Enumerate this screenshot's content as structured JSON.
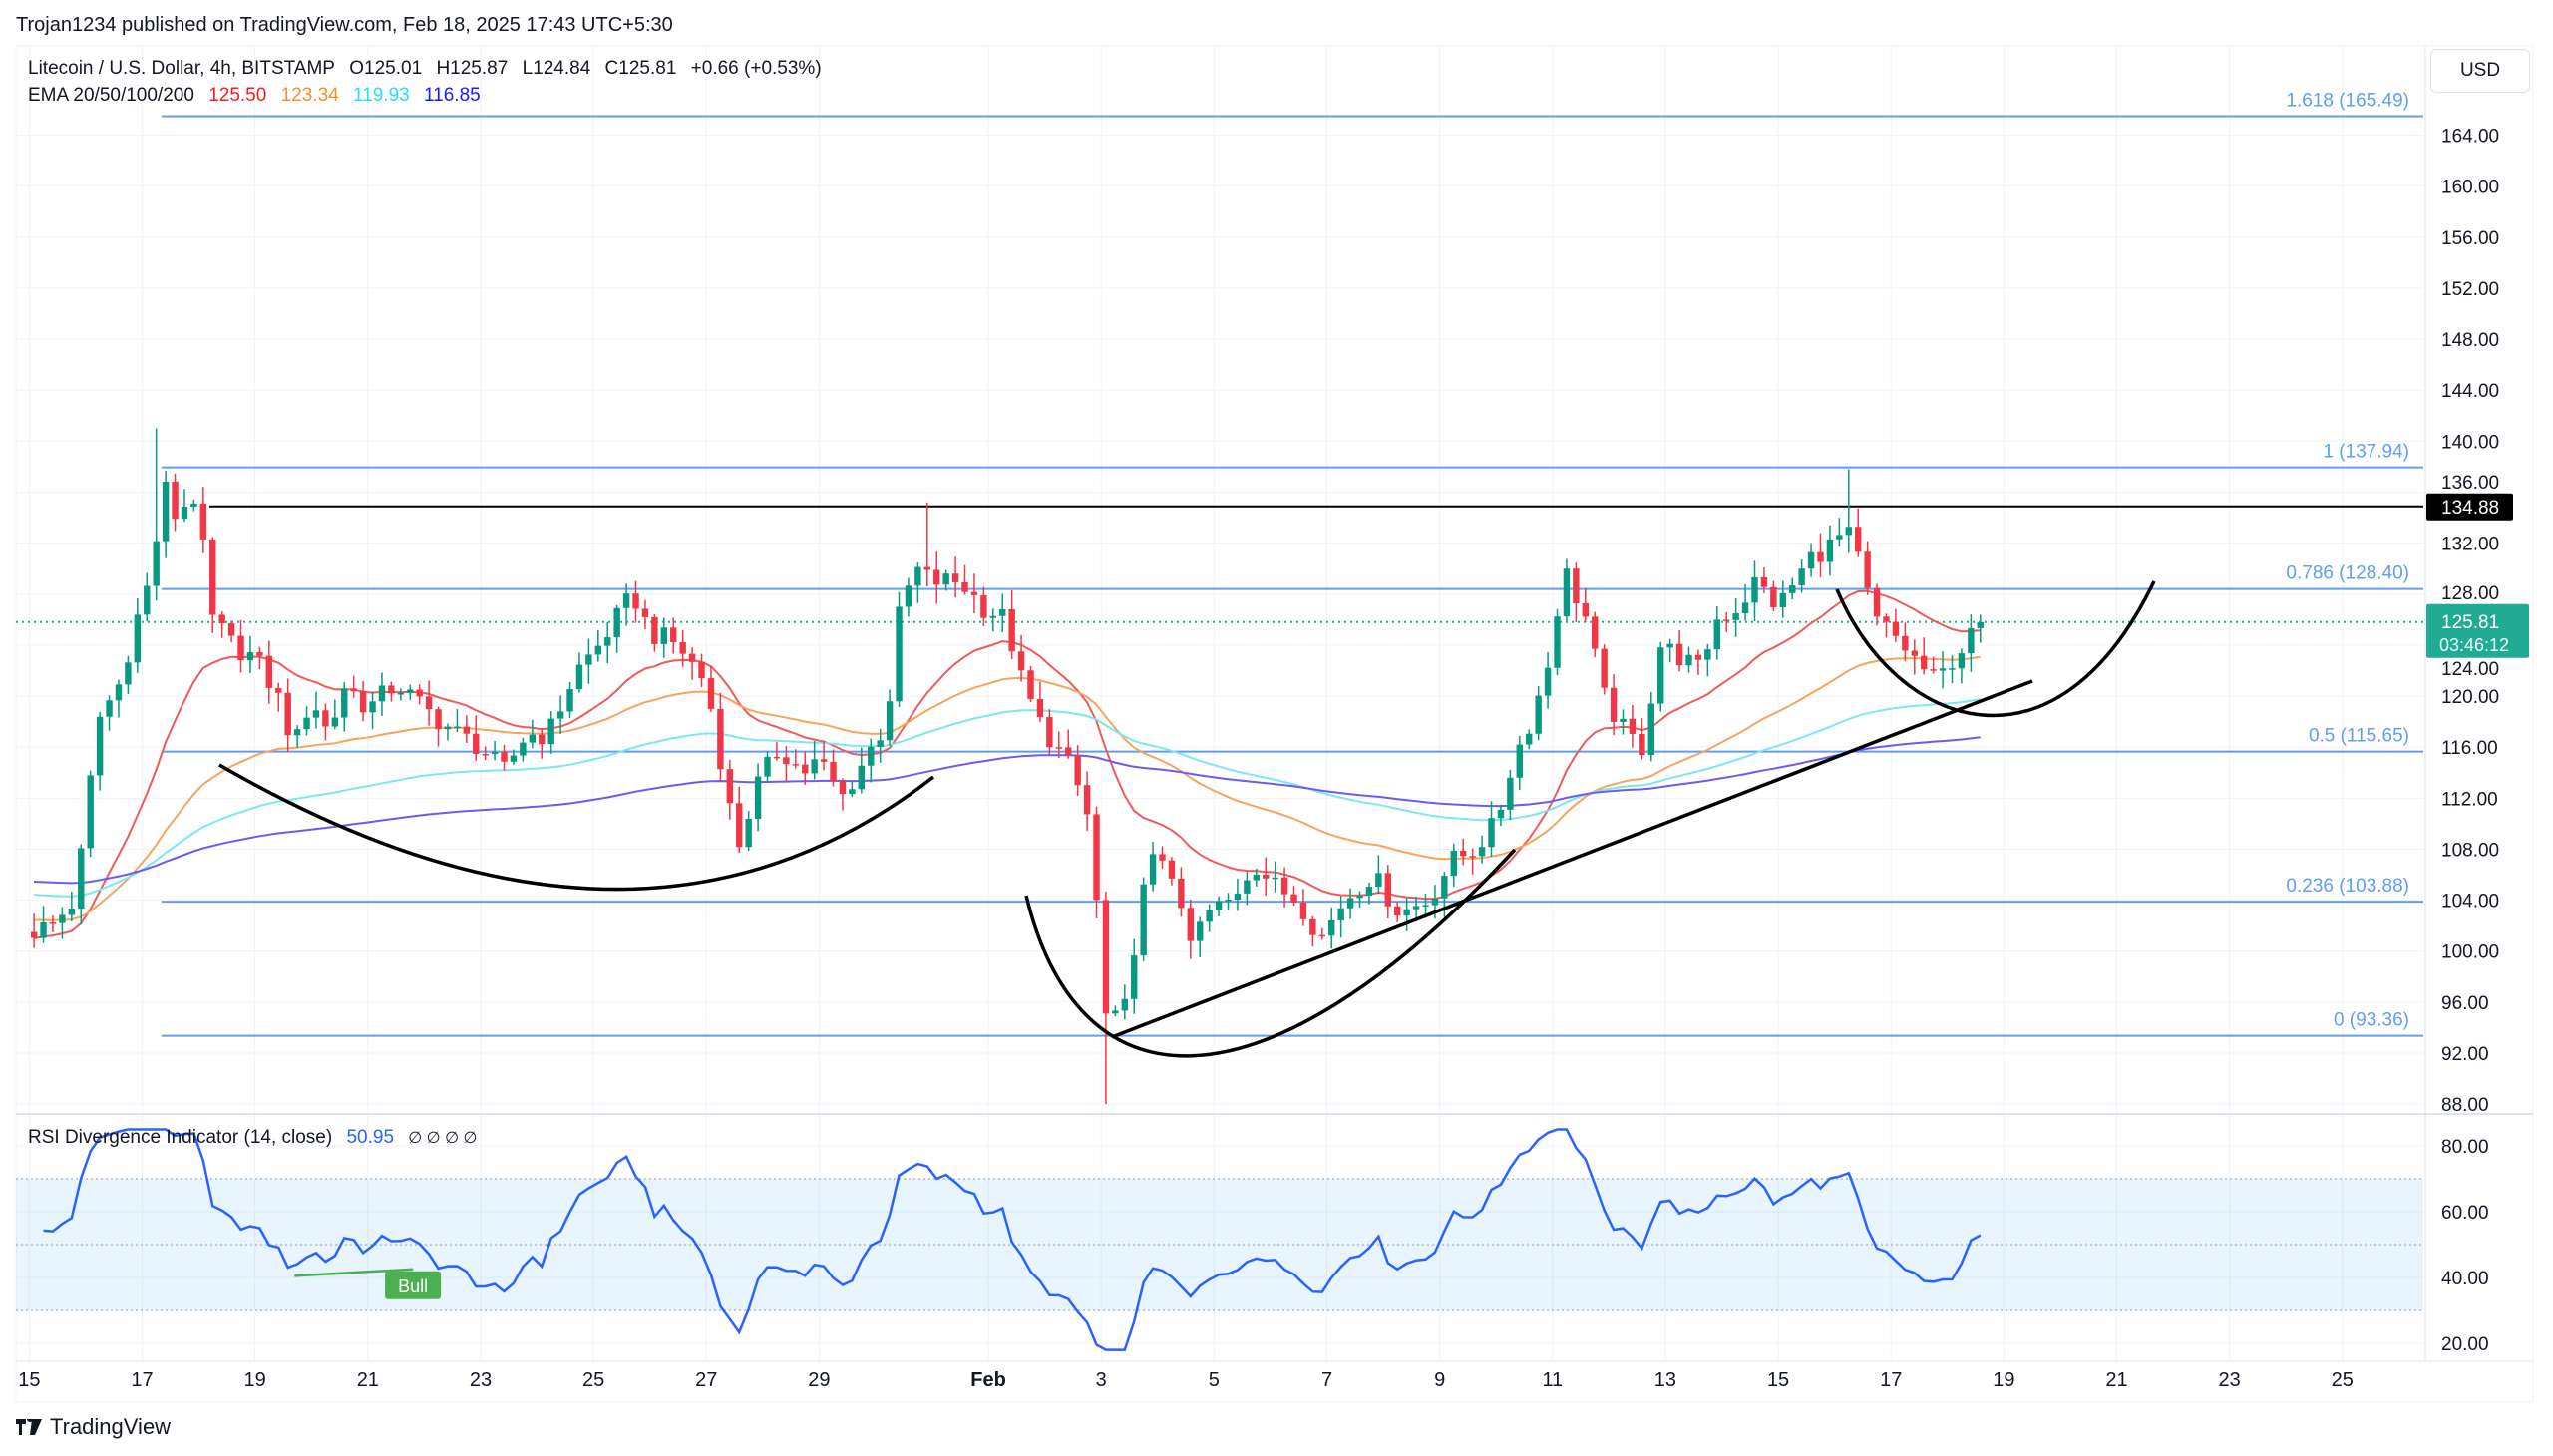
{
  "header": {
    "published": "Trojan1234 published on TradingView.com, Feb 18, 2025 17:43 UTC+5:30",
    "symbol": "Litecoin / U.S. Dollar, 4h, BITSTAMP",
    "open": "O125.01",
    "high": "H125.87",
    "low": "L124.84",
    "close": "C125.81",
    "change": "+0.66 (+0.53%)"
  },
  "ema": {
    "label": "EMA 20/50/100/200",
    "values": [
      "125.50",
      "123.34",
      "119.93",
      "116.85"
    ],
    "legend_colors": [
      "#ff1a1a",
      "#ff8a2a",
      "#22e0ff",
      "#1a1aff"
    ],
    "line_colors": [
      "#f05a5a",
      "#f7a45a",
      "#7ae8f0",
      "#6b5cf0"
    ],
    "periods": [
      20,
      50,
      100,
      200
    ]
  },
  "rsi": {
    "label": "RSI Divergence Indicator (14, close)",
    "value": "50.95",
    "na": "∅ ∅ ∅ ∅",
    "bull_label": "Bull"
  },
  "currency": "USD",
  "footer": {
    "brand": "TradingView"
  },
  "colors": {
    "up": "#089981",
    "down": "#f23645",
    "fib": "#5e9ef5",
    "rsi": "#2962ff",
    "bull": "#4caf50",
    "last": "#22ab94"
  },
  "chart_data": {
    "type": "candlestick",
    "title": "Litecoin / U.S. Dollar, 4h, BITSTAMP",
    "interval_hours": 4,
    "candle_count": 208,
    "close_keypoints_day_price": [
      [
        0,
        101.5
      ],
      [
        0.4,
        102
      ],
      [
        0.8,
        104
      ],
      [
        1.0,
        110
      ],
      [
        1.2,
        118
      ],
      [
        1.6,
        121
      ],
      [
        1.9,
        126
      ],
      [
        2.2,
        130
      ],
      [
        2.35,
        137
      ],
      [
        2.6,
        134
      ],
      [
        2.9,
        136
      ],
      [
        3.1,
        131
      ],
      [
        3.25,
        126
      ],
      [
        3.6,
        124
      ],
      [
        4.0,
        123
      ],
      [
        4.4,
        120
      ],
      [
        4.7,
        116
      ],
      [
        5.0,
        120
      ],
      [
        5.3,
        117
      ],
      [
        5.6,
        121
      ],
      [
        6.0,
        119
      ],
      [
        6.5,
        121
      ],
      [
        7.0,
        119
      ],
      [
        7.6,
        117
      ],
      [
        8.0,
        116
      ],
      [
        8.4,
        114
      ],
      [
        8.8,
        117
      ],
      [
        9.2,
        117
      ],
      [
        9.7,
        122
      ],
      [
        10.1,
        124
      ],
      [
        10.7,
        128
      ],
      [
        11.0,
        125
      ],
      [
        11.5,
        124
      ],
      [
        12.0,
        121
      ],
      [
        12.3,
        114
      ],
      [
        12.55,
        108
      ],
      [
        12.9,
        113
      ],
      [
        13.3,
        116
      ],
      [
        13.7,
        114
      ],
      [
        14.0,
        115
      ],
      [
        14.4,
        112
      ],
      [
        14.8,
        115
      ],
      [
        15.2,
        118
      ],
      [
        15.4,
        126
      ],
      [
        15.7,
        130
      ],
      [
        16.0,
        129
      ],
      [
        16.5,
        129
      ],
      [
        16.9,
        127
      ],
      [
        17.3,
        126
      ],
      [
        17.6,
        121
      ],
      [
        17.9,
        118
      ],
      [
        18.2,
        116
      ],
      [
        18.5,
        114
      ],
      [
        18.8,
        110
      ],
      [
        19.1,
        94
      ],
      [
        19.4,
        95
      ],
      [
        19.7,
        104
      ],
      [
        20.0,
        108
      ],
      [
        20.3,
        106
      ],
      [
        20.5,
        100
      ],
      [
        20.9,
        103
      ],
      [
        21.3,
        104
      ],
      [
        21.7,
        107
      ],
      [
        22.1,
        105
      ],
      [
        22.5,
        104
      ],
      [
        22.9,
        101
      ],
      [
        23.3,
        104
      ],
      [
        23.8,
        106
      ],
      [
        24.3,
        103
      ],
      [
        24.8,
        104
      ],
      [
        25.2,
        107
      ],
      [
        25.6,
        108
      ],
      [
        26.0,
        110
      ],
      [
        26.3,
        115
      ],
      [
        26.6,
        118
      ],
      [
        26.9,
        122
      ],
      [
        27.2,
        130
      ],
      [
        27.6,
        126
      ],
      [
        27.9,
        120
      ],
      [
        28.3,
        117
      ],
      [
        28.6,
        116
      ],
      [
        28.9,
        124
      ],
      [
        29.3,
        123
      ],
      [
        29.6,
        122
      ],
      [
        29.9,
        126
      ],
      [
        30.3,
        127
      ],
      [
        30.6,
        129
      ],
      [
        31.0,
        127
      ],
      [
        31.3,
        129
      ],
      [
        31.6,
        131
      ],
      [
        32.0,
        132
      ],
      [
        32.2,
        133
      ],
      [
        32.4,
        131
      ],
      [
        32.7,
        126
      ],
      [
        33.0,
        125
      ],
      [
        33.4,
        123
      ],
      [
        33.8,
        121
      ],
      [
        34.1,
        123
      ],
      [
        34.4,
        124.5
      ],
      [
        34.6,
        125.81
      ]
    ],
    "wick_extremes": [
      {
        "day": 2.3,
        "high": 141
      },
      {
        "day": 19.1,
        "low": 88
      },
      {
        "day": 32.3,
        "high": 137.8
      },
      {
        "day": 15.9,
        "high": 135.2
      }
    ],
    "ema_seeds": [
      101,
      102.5,
      104.5,
      105.5
    ],
    "y_ticks": [
      88,
      92,
      96,
      100,
      104,
      108,
      112,
      116,
      120,
      124,
      128,
      132,
      136,
      140,
      144,
      148,
      152,
      156,
      160,
      164
    ],
    "ylim": [
      88,
      164
    ],
    "x_ticks": [
      {
        "label": "15",
        "day": 0
      },
      {
        "label": "17",
        "day": 2
      },
      {
        "label": "19",
        "day": 4
      },
      {
        "label": "21",
        "day": 6
      },
      {
        "label": "23",
        "day": 8
      },
      {
        "label": "25",
        "day": 10
      },
      {
        "label": "27",
        "day": 12
      },
      {
        "label": "29",
        "day": 14
      },
      {
        "label": "Feb",
        "day": 17,
        "bold": true
      },
      {
        "label": "3",
        "day": 19
      },
      {
        "label": "5",
        "day": 21
      },
      {
        "label": "7",
        "day": 23
      },
      {
        "label": "9",
        "day": 25
      },
      {
        "label": "11",
        "day": 27
      },
      {
        "label": "13",
        "day": 29
      },
      {
        "label": "15",
        "day": 31
      },
      {
        "label": "17",
        "day": 33
      },
      {
        "label": "19",
        "day": 35
      },
      {
        "label": "21",
        "day": 37
      },
      {
        "label": "23",
        "day": 39
      },
      {
        "label": "25",
        "day": 41
      }
    ],
    "fib_levels": [
      {
        "label": "1.618 (165.49)",
        "price": 165.49
      },
      {
        "label": "1 (137.94)",
        "price": 137.94
      },
      {
        "label": "0.786 (128.40)",
        "price": 128.4
      },
      {
        "label": "0.5 (115.65)",
        "price": 115.65
      },
      {
        "label": "0.236 (103.88)",
        "price": 103.88
      },
      {
        "label": "0 (93.36)",
        "price": 93.36
      }
    ],
    "resistance": {
      "price": 134.88,
      "label": "134.88"
    },
    "last_price": {
      "price": 125.81,
      "label": "125.81",
      "countdown": "03:46:12"
    },
    "rsi_ticks": [
      20,
      40,
      60,
      80
    ],
    "rsi_bands": [
      30,
      50,
      70
    ],
    "rsi_ylim": [
      20,
      80
    ],
    "bull_divergence": {
      "from_day": 4.7,
      "from_rsi": 40.5,
      "to_day": 6.8,
      "to_rsi": 42.5
    }
  }
}
